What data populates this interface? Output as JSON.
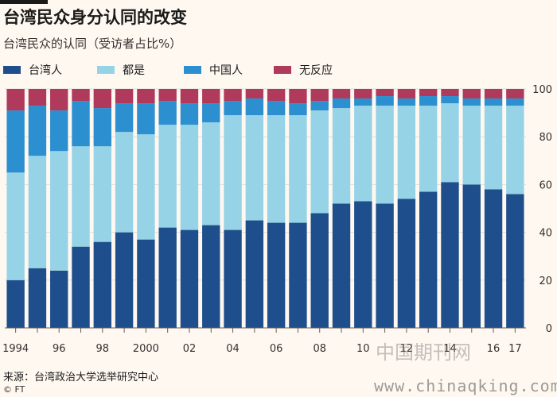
{
  "header": {
    "title": "台湾民众身分认同的改变",
    "subtitle": "台湾民众的认同（受访者占比%）"
  },
  "colors": {
    "taiwanese": "#1f4e8c",
    "both": "#96d3e6",
    "chinese": "#2b8fd0",
    "no_response": "#b03a5c",
    "grid": "#e3ddd6",
    "text": "#33302e"
  },
  "legend": [
    {
      "label": "台湾人",
      "color": "#1f4e8c"
    },
    {
      "label": "都是",
      "color": "#96d3e6"
    },
    {
      "label": "中国人",
      "color": "#2b8fd0"
    },
    {
      "label": "无反应",
      "color": "#b03a5c"
    }
  ],
  "chart_data": {
    "type": "bar",
    "stacked": true,
    "title": "台湾民众身分认同的改变",
    "subtitle": "台湾民众的认同（受访者占比%）",
    "ylabel": "",
    "xlabel": "",
    "ylim": [
      0,
      100
    ],
    "yticks": [
      0,
      20,
      40,
      60,
      80,
      100
    ],
    "categories": [
      "1994",
      "1995",
      "1996",
      "1997",
      "1998",
      "1999",
      "2000",
      "2001",
      "2002",
      "2003",
      "2004",
      "2005",
      "2006",
      "2007",
      "2008",
      "2009",
      "2010",
      "2011",
      "2012",
      "2013",
      "2014",
      "2015",
      "2016",
      "2017"
    ],
    "tick_labels": [
      "1994",
      "",
      "96",
      "",
      "98",
      "",
      "2000",
      "",
      "02",
      "",
      "04",
      "",
      "06",
      "",
      "08",
      "",
      "10",
      "",
      "12",
      "",
      "14",
      "",
      "16",
      "17"
    ],
    "series": [
      {
        "name": "台湾人",
        "values": [
          20,
          25,
          24,
          34,
          36,
          40,
          37,
          42,
          41,
          43,
          41,
          45,
          44,
          44,
          48,
          52,
          53,
          52,
          54,
          57,
          61,
          60,
          58,
          56
        ]
      },
      {
        "name": "都是",
        "values": [
          45,
          47,
          50,
          42,
          40,
          42,
          44,
          43,
          44,
          43,
          48,
          44,
          45,
          45,
          43,
          40,
          40,
          41,
          39,
          36,
          33,
          33,
          35,
          37
        ]
      },
      {
        "name": "中国人",
        "values": [
          26,
          21,
          17,
          19,
          16,
          12,
          13,
          10,
          9,
          8,
          6,
          7,
          6,
          5,
          4,
          4,
          3,
          4,
          3,
          4,
          3,
          3,
          3,
          3
        ]
      },
      {
        "name": "无反应",
        "values": [
          9,
          7,
          9,
          5,
          8,
          6,
          6,
          5,
          6,
          6,
          5,
          4,
          5,
          6,
          5,
          4,
          4,
          3,
          4,
          3,
          3,
          4,
          4,
          4
        ]
      }
    ]
  },
  "footer": {
    "source": "来源：台湾政治大学选举研究中心",
    "credit": "© FT"
  },
  "watermark": {
    "cn": "中国期刊网",
    "url": "www.chinaqking.com"
  }
}
